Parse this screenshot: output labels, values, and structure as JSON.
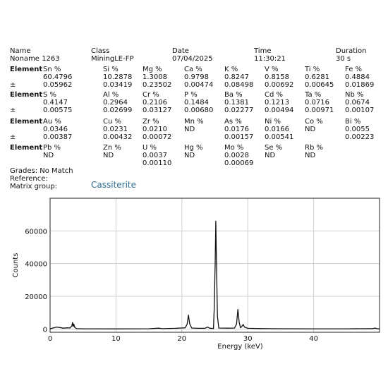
{
  "header": {
    "labels": [
      "Name",
      "Class",
      "Date",
      "Time",
      "Duration"
    ],
    "values": [
      "Noname 1263",
      "MiningLE-FP",
      "07/04/2025",
      "11:30:21",
      "30 s"
    ]
  },
  "element_label": "Element",
  "pm_label": "±",
  "element_rows": [
    {
      "names": [
        "Sn %",
        "Si %",
        "Mg %",
        "Ca %",
        "K %",
        "V %",
        "Ti %",
        "Fe %"
      ],
      "values": [
        "60.4796",
        "10.2878",
        "1.3008",
        "0.9798",
        "0.8247",
        "0.8158",
        "0.6281",
        "0.4884"
      ],
      "errors": [
        "0.05962",
        "0.03419",
        "0.23502",
        "0.00474",
        "0.08498",
        "0.00692",
        "0.00645",
        "0.01869"
      ]
    },
    {
      "names": [
        "S %",
        "Al %",
        "Cr %",
        "P %",
        "Ba %",
        "Cd %",
        "Ta %",
        "Nb %"
      ],
      "values": [
        "0.4147",
        "0.2964",
        "0.2106",
        "0.1484",
        "0.1381",
        "0.1213",
        "0.0716",
        "0.0674"
      ],
      "errors": [
        "0.00575",
        "0.02699",
        "0.03127",
        "0.00680",
        "0.02277",
        "0.00494",
        "0.00971",
        "0.00107"
      ]
    },
    {
      "names": [
        "Au %",
        "Cu %",
        "Zr %",
        "Mn %",
        "As %",
        "Ni %",
        "Co %",
        "Bi %"
      ],
      "values": [
        "0.0346",
        "0.0231",
        "0.0210",
        "ND",
        "0.0176",
        "0.0166",
        "ND",
        "0.0055"
      ],
      "errors": [
        "0.00387",
        "0.00432",
        "0.00072",
        "",
        "0.00157",
        "0.00541",
        "",
        "0.00223"
      ]
    },
    {
      "names": [
        "Pb %",
        "Zn %",
        "U %",
        "Hg %",
        "Mo %",
        "Se %",
        "Rb %",
        ""
      ],
      "values": [
        "ND",
        "ND",
        "0.0037",
        "ND",
        "0.0028",
        "ND",
        "ND",
        ""
      ],
      "errors": [
        "",
        "",
        "0.00110",
        "",
        "0.00069",
        "",
        "",
        ""
      ]
    }
  ],
  "footer": {
    "grades": "Grades: No Match",
    "reference": "Reference:",
    "matrix_label": "Matrix group:",
    "matrix_value": "Cassiterite",
    "matrix_color": "#2b6a8c"
  },
  "chart_data": {
    "type": "line",
    "xlabel": "Energy (keV)",
    "ylabel": "Counts",
    "xlim": [
      0,
      50
    ],
    "ylim": [
      -2000,
      80000
    ],
    "x_ticks": [
      0,
      10,
      20,
      30,
      40
    ],
    "y_ticks": [
      0,
      20000,
      40000,
      60000
    ],
    "y_tick_labels": [
      "0",
      "20000",
      "40000",
      "60000"
    ],
    "grid": true,
    "series": [
      {
        "points": [
          [
            0,
            0
          ],
          [
            0.3,
            500
          ],
          [
            1.0,
            1200
          ],
          [
            1.5,
            900
          ],
          [
            2.0,
            500
          ],
          [
            2.6,
            700
          ],
          [
            3.0,
            600
          ],
          [
            3.3,
            1800
          ],
          [
            3.4,
            4000
          ],
          [
            3.5,
            1500
          ],
          [
            3.6,
            3000
          ],
          [
            3.75,
            1000
          ],
          [
            4.0,
            200
          ],
          [
            5.0,
            100
          ],
          [
            10,
            80
          ],
          [
            15,
            150
          ],
          [
            16.5,
            500
          ],
          [
            17,
            200
          ],
          [
            19,
            400
          ],
          [
            20.5,
            700
          ],
          [
            20.8,
            3000
          ],
          [
            21.0,
            8500
          ],
          [
            21.2,
            3000
          ],
          [
            21.5,
            600
          ],
          [
            22.5,
            400
          ],
          [
            23.5,
            400
          ],
          [
            23.9,
            1200
          ],
          [
            24.2,
            500
          ],
          [
            24.8,
            300
          ],
          [
            24.9,
            12000
          ],
          [
            25.05,
            40000
          ],
          [
            25.15,
            66000
          ],
          [
            25.25,
            42000
          ],
          [
            25.4,
            8000
          ],
          [
            25.6,
            600
          ],
          [
            27,
            500
          ],
          [
            28,
            600
          ],
          [
            28.3,
            3000
          ],
          [
            28.5,
            12000
          ],
          [
            28.7,
            4000
          ],
          [
            28.9,
            800
          ],
          [
            29.1,
            1500
          ],
          [
            29.3,
            2800
          ],
          [
            29.5,
            1200
          ],
          [
            30,
            400
          ],
          [
            32,
            250
          ],
          [
            35,
            150
          ],
          [
            40,
            120
          ],
          [
            45,
            120
          ],
          [
            49,
            250
          ],
          [
            49.3,
            600
          ],
          [
            49.6,
            200
          ],
          [
            50,
            100
          ]
        ]
      }
    ]
  }
}
